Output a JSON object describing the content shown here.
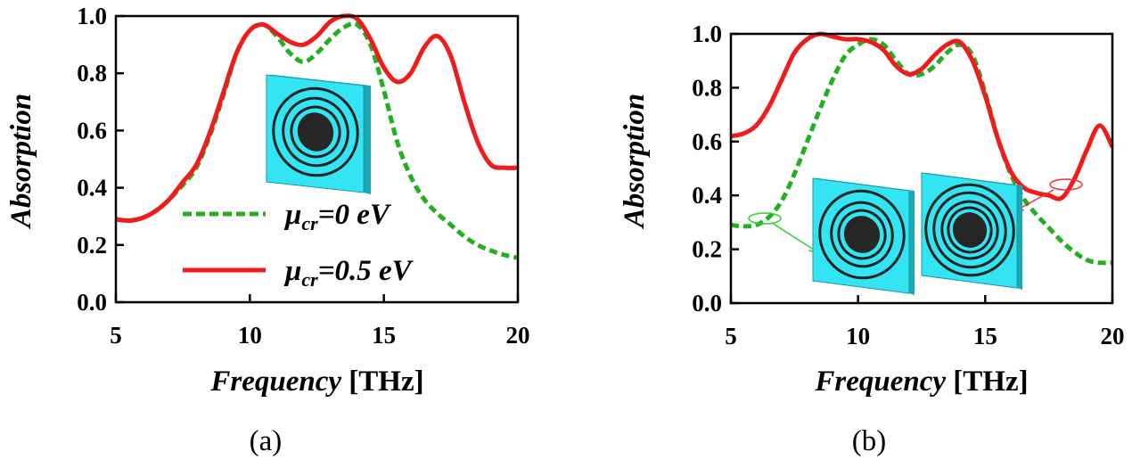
{
  "colors": {
    "series_off": "#22b022",
    "series_on": "#ee1c1c",
    "inset_face": "#33e5f2",
    "inset_side": "#1aa8b4",
    "inset_ring": "#222222",
    "inset_disk": "#262626",
    "arrow_green": "#33cc33",
    "arrow_red": "#ee3333"
  },
  "chart_data": [
    {
      "type": "line",
      "panel": "(a)",
      "xlabel_italic": "Frequency",
      "xlabel_unit": "[THz]",
      "ylabel": "Absorption",
      "xlim": [
        5,
        20
      ],
      "ylim": [
        0.0,
        1.0
      ],
      "xticks": [
        "5",
        "10",
        "15",
        "20"
      ],
      "yticks": [
        "0.0",
        "0.2",
        "0.4",
        "0.6",
        "0.8",
        "1.0"
      ],
      "legend": {
        "placement": "lower-left",
        "entries": [
          {
            "mu": "μ",
            "sub": "cr",
            "rest": "=0 eV"
          },
          {
            "mu": "μ",
            "sub": "cr",
            "rest": "=0.5 eV"
          }
        ]
      },
      "series": [
        {
          "style": "dashed",
          "color_key": "series_off",
          "x": [
            5.0,
            5.5,
            6.0,
            6.5,
            7.0,
            7.5,
            8.0,
            8.5,
            9.0,
            9.5,
            10.0,
            10.5,
            11.0,
            11.5,
            12.0,
            12.5,
            13.0,
            13.5,
            14.0,
            14.5,
            15.0,
            15.5,
            16.0,
            16.5,
            17.0,
            17.5,
            18.0,
            18.5,
            19.0,
            19.5,
            20.0
          ],
          "values": [
            0.29,
            0.285,
            0.295,
            0.32,
            0.36,
            0.41,
            0.47,
            0.58,
            0.72,
            0.87,
            0.95,
            0.97,
            0.93,
            0.87,
            0.84,
            0.87,
            0.92,
            0.96,
            0.97,
            0.9,
            0.74,
            0.56,
            0.44,
            0.36,
            0.31,
            0.27,
            0.23,
            0.2,
            0.18,
            0.165,
            0.155
          ]
        },
        {
          "style": "solid",
          "color_key": "series_on",
          "x": [
            5.0,
            5.5,
            6.0,
            6.5,
            7.0,
            7.5,
            8.0,
            8.5,
            9.0,
            9.5,
            10.0,
            10.5,
            11.0,
            11.5,
            12.0,
            12.5,
            13.0,
            13.5,
            14.0,
            14.5,
            15.0,
            15.5,
            16.0,
            16.5,
            17.0,
            17.5,
            18.0,
            18.5,
            19.0,
            19.5,
            20.0
          ],
          "values": [
            0.29,
            0.285,
            0.295,
            0.32,
            0.36,
            0.42,
            0.48,
            0.59,
            0.73,
            0.87,
            0.95,
            0.97,
            0.94,
            0.91,
            0.9,
            0.93,
            0.98,
            1.0,
            0.99,
            0.92,
            0.82,
            0.77,
            0.8,
            0.89,
            0.93,
            0.86,
            0.7,
            0.56,
            0.48,
            0.47,
            0.47
          ]
        }
      ]
    },
    {
      "type": "line",
      "panel": "(b)",
      "xlabel_italic": "Frequency",
      "xlabel_unit": "[THz]",
      "ylabel": "Absorption",
      "xlim": [
        5,
        20
      ],
      "ylim": [
        0.0,
        1.0
      ],
      "xticks": [
        "5",
        "10",
        "15",
        "20"
      ],
      "yticks": [
        "0.0",
        "0.2",
        "0.4",
        "0.6",
        "0.8",
        "1.0"
      ],
      "series": [
        {
          "style": "dashed",
          "color_key": "series_off",
          "x": [
            5.0,
            5.5,
            6.0,
            6.5,
            7.0,
            7.5,
            8.0,
            8.5,
            9.0,
            9.5,
            10.0,
            10.5,
            11.0,
            11.5,
            12.0,
            12.5,
            13.0,
            13.5,
            14.0,
            14.5,
            15.0,
            15.5,
            16.0,
            16.5,
            17.0,
            17.5,
            18.0,
            18.5,
            19.0,
            19.5,
            20.0
          ],
          "values": [
            0.29,
            0.285,
            0.29,
            0.32,
            0.38,
            0.48,
            0.6,
            0.72,
            0.83,
            0.92,
            0.96,
            0.98,
            0.96,
            0.9,
            0.85,
            0.85,
            0.88,
            0.93,
            0.96,
            0.92,
            0.78,
            0.61,
            0.48,
            0.39,
            0.33,
            0.28,
            0.23,
            0.19,
            0.16,
            0.15,
            0.15
          ]
        },
        {
          "style": "solid",
          "color_key": "series_on",
          "x": [
            5.0,
            5.5,
            6.0,
            6.5,
            7.0,
            7.5,
            8.0,
            8.5,
            9.0,
            9.5,
            10.0,
            10.5,
            11.0,
            11.5,
            12.0,
            12.5,
            13.0,
            13.5,
            14.0,
            14.5,
            15.0,
            15.5,
            16.0,
            16.5,
            17.0,
            17.5,
            18.0,
            18.5,
            19.0,
            19.5,
            20.0
          ],
          "values": [
            0.62,
            0.63,
            0.66,
            0.73,
            0.83,
            0.93,
            0.98,
            1.0,
            0.99,
            0.98,
            0.98,
            0.97,
            0.94,
            0.88,
            0.85,
            0.87,
            0.92,
            0.96,
            0.97,
            0.9,
            0.77,
            0.61,
            0.49,
            0.43,
            0.41,
            0.4,
            0.39,
            0.46,
            0.57,
            0.66,
            0.58
          ]
        }
      ]
    }
  ]
}
